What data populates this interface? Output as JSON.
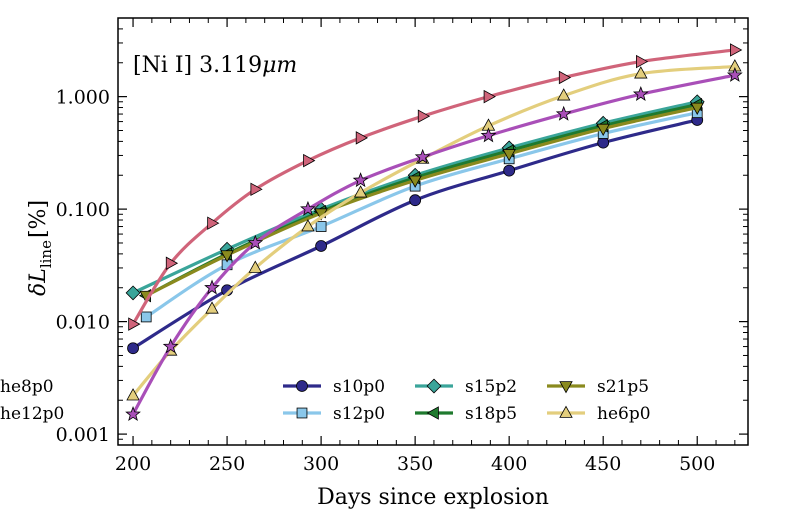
{
  "chart_data": {
    "type": "line",
    "annotation_prefix": "[Ni I] ",
    "annotation_value": "3.119",
    "annotation_unit": "μm",
    "xlabel": "Days since explosion",
    "ylabel_main": "δL",
    "ylabel_sub": "line",
    "ylabel_unit": "[%]",
    "xlim": [
      192,
      527
    ],
    "ylim": [
      0.0008,
      5.0
    ],
    "yscale": "log",
    "xticks": [
      200,
      250,
      300,
      350,
      400,
      450,
      500
    ],
    "xtick_labels": [
      "200",
      "250",
      "300",
      "350",
      "400",
      "450",
      "500"
    ],
    "yticks": [
      0.001,
      0.01,
      0.1,
      1.0
    ],
    "ytick_labels": [
      "0.001",
      "0.010",
      "0.100",
      "1.000"
    ],
    "legend_position": "lower-right",
    "series": [
      {
        "name": "s10p0",
        "color": "#2e2a8a",
        "marker": "circle",
        "x": [
          200,
          250,
          300,
          350,
          400,
          450,
          500
        ],
        "values": [
          0.0058,
          0.019,
          0.047,
          0.12,
          0.22,
          0.39,
          0.62
        ]
      },
      {
        "name": "s12p0",
        "color": "#8ac7ea",
        "marker": "square",
        "x": [
          207,
          250,
          300,
          350,
          400,
          450,
          500
        ],
        "values": [
          0.011,
          0.032,
          0.07,
          0.16,
          0.28,
          0.47,
          0.72
        ]
      },
      {
        "name": "s15p2",
        "color": "#3aa59a",
        "marker": "diamond",
        "x": [
          200,
          250,
          300,
          350,
          400,
          450,
          500
        ],
        "values": [
          0.018,
          0.044,
          0.1,
          0.2,
          0.35,
          0.58,
          0.9
        ]
      },
      {
        "name": "s18p5",
        "color": "#1f7a2e",
        "marker": "triangle-left",
        "x": [
          207,
          250,
          300,
          350,
          400,
          450,
          500
        ],
        "values": [
          0.017,
          0.04,
          0.095,
          0.19,
          0.33,
          0.55,
          0.85
        ]
      },
      {
        "name": "s21p5",
        "color": "#8a8a1e",
        "marker": "triangle-down",
        "x": [
          207,
          250,
          300,
          350,
          400,
          450,
          500
        ],
        "values": [
          0.017,
          0.039,
          0.092,
          0.18,
          0.31,
          0.52,
          0.8
        ]
      },
      {
        "name": "he6p0",
        "color": "#e3ce7d",
        "marker": "triangle-up",
        "x": [
          200,
          220,
          242,
          265,
          293,
          321,
          354,
          389,
          429,
          470,
          520
        ],
        "values": [
          0.0022,
          0.0055,
          0.013,
          0.03,
          0.07,
          0.14,
          0.28,
          0.55,
          1.02,
          1.6,
          1.85
        ]
      },
      {
        "name": "he8p0",
        "color": "#d0647a",
        "marker": "triangle-right",
        "x": [
          200,
          220,
          242,
          265,
          293,
          321,
          354,
          389,
          429,
          470,
          520
        ],
        "values": [
          0.0095,
          0.033,
          0.075,
          0.15,
          0.27,
          0.43,
          0.67,
          1.0,
          1.48,
          2.05,
          2.6
        ]
      },
      {
        "name": "he12p0",
        "color": "#a94fb8",
        "marker": "star",
        "x": [
          200,
          220,
          242,
          265,
          293,
          321,
          354,
          389,
          429,
          470,
          520
        ],
        "values": [
          0.0015,
          0.006,
          0.02,
          0.05,
          0.1,
          0.18,
          0.29,
          0.45,
          0.7,
          1.05,
          1.55
        ]
      }
    ]
  }
}
